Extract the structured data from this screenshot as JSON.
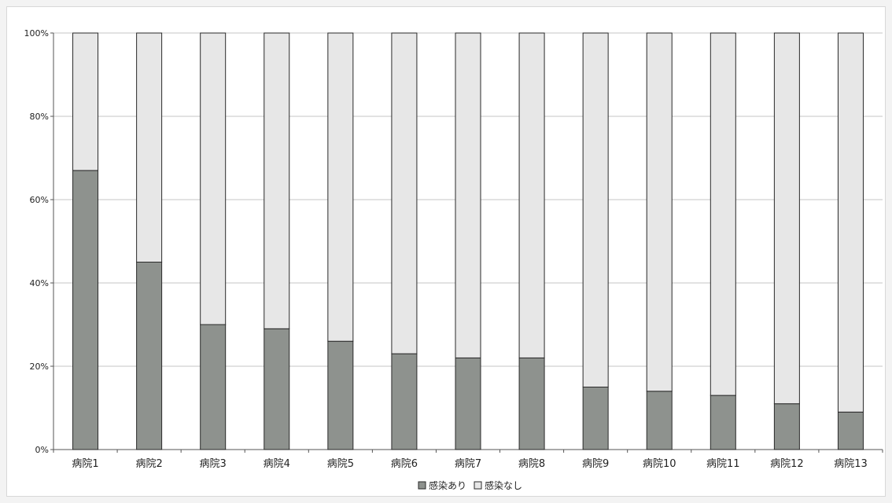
{
  "chart_data": {
    "type": "bar",
    "stacked": true,
    "percent": true,
    "title": "",
    "xlabel": "",
    "ylabel": "",
    "ylim": [
      0,
      100
    ],
    "y_ticks": [
      "0%",
      "20%",
      "40%",
      "60%",
      "80%",
      "100%"
    ],
    "grid": true,
    "legend_position": "bottom",
    "categories": [
      "病院1",
      "病院2",
      "病院3",
      "病院4",
      "病院5",
      "病院6",
      "病院7",
      "病院8",
      "病院9",
      "病院10",
      "病院11",
      "病院12",
      "病院13"
    ],
    "series": [
      {
        "name": "感染あり",
        "color": "#8e928e",
        "values": [
          67,
          45,
          30,
          29,
          26,
          23,
          22,
          22,
          15,
          14,
          13,
          11,
          9
        ]
      },
      {
        "name": "感染なし",
        "color": "#e7e7e7",
        "values": [
          33,
          55,
          70,
          71,
          74,
          77,
          78,
          78,
          85,
          86,
          87,
          89,
          91
        ]
      }
    ]
  }
}
